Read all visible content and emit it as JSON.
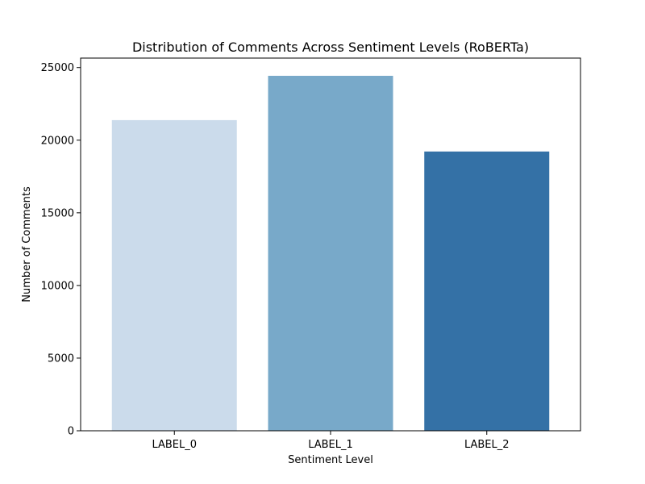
{
  "chart_data": {
    "type": "bar",
    "title": "Distribution of Comments Across Sentiment Levels (RoBERTa)",
    "xlabel": "Sentiment Level",
    "ylabel": "Number of Comments",
    "categories": [
      "LABEL_0",
      "LABEL_1",
      "LABEL_2"
    ],
    "values": [
      21380,
      24430,
      19220
    ],
    "colors": [
      "#cbdbeb",
      "#78a9c9",
      "#3471a6"
    ],
    "ylim": [
      0,
      25650
    ],
    "yticks": [
      0,
      5000,
      10000,
      15000,
      20000,
      25000
    ],
    "ytick_labels": [
      "0",
      "5000",
      "10000",
      "15000",
      "20000",
      "25000"
    ],
    "grid": false,
    "legend": "none"
  }
}
